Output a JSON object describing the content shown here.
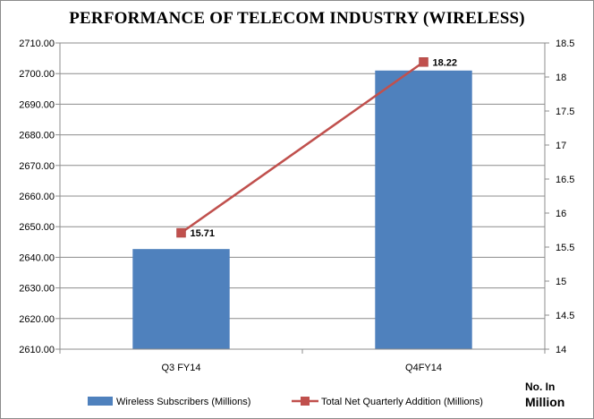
{
  "chart_data": {
    "type": "bar",
    "title": "PERFORMANCE OF TELECOM INDUSTRY (WIRELESS)",
    "categories": [
      "Q3 FY14",
      "Q4FY14"
    ],
    "series": [
      {
        "name": "Wireless Subscribers (Millions)",
        "type": "bar",
        "axis": "left",
        "color": "#4f81bd",
        "values": [
          2642.7,
          2701.0
        ]
      },
      {
        "name": "Total Net Quarterly Addition (Millions)",
        "type": "line",
        "axis": "right",
        "color": "#c0504d",
        "values": [
          15.71,
          18.22
        ],
        "data_labels": [
          "15.71",
          "18.22"
        ]
      }
    ],
    "y_left": {
      "ylim": [
        2610,
        2710
      ],
      "ticks": [
        "2610.00",
        "2620.00",
        "2630.00",
        "2640.00",
        "2650.00",
        "2660.00",
        "2670.00",
        "2680.00",
        "2690.00",
        "2700.00",
        "2710.00"
      ]
    },
    "y_right": {
      "ylim": [
        14,
        18.5
      ],
      "ticks": [
        "14",
        "14.5",
        "15",
        "15.5",
        "16",
        "16.5",
        "17",
        "17.5",
        "18",
        "18.5"
      ]
    },
    "grid": true,
    "legend_position": "bottom",
    "unit_label_line1": "No. In",
    "unit_label_line2": "Million"
  }
}
